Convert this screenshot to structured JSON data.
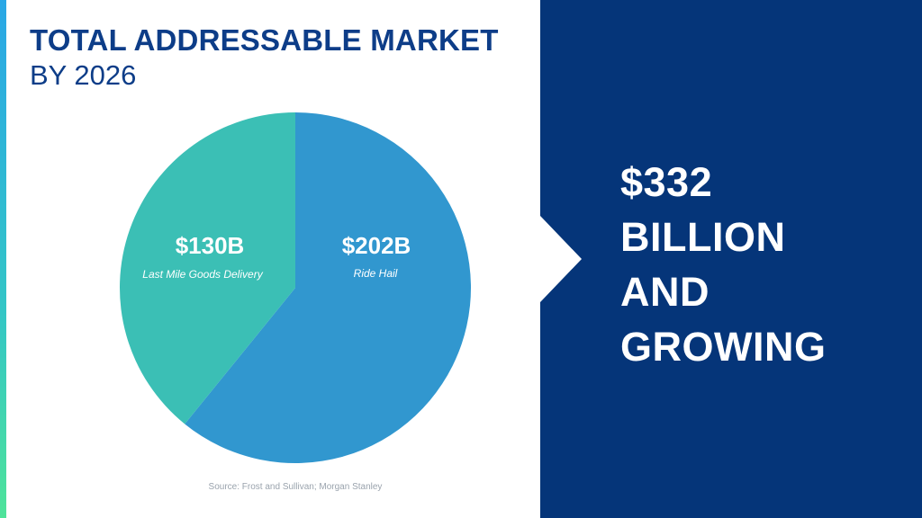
{
  "header": {
    "title": "TOTAL ADDRESSABLE MARKET",
    "subtitle": "BY 2026"
  },
  "chart_data": {
    "type": "pie",
    "slices": [
      {
        "label": "Ride Hail",
        "value": 202,
        "value_label": "$202B",
        "color": "#3197cf"
      },
      {
        "label": "Last Mile Goods Delivery",
        "value": 130,
        "value_label": "$130B",
        "color": "#3bbfb5"
      }
    ],
    "unit": "billion USD"
  },
  "source": "Source: Frost and Sullivan; Morgan Stanley",
  "headline": {
    "lines": [
      "$332",
      "BILLION",
      "AND",
      "GROWING"
    ]
  },
  "colors": {
    "title": "#0d3d88",
    "panel": "#053579"
  }
}
